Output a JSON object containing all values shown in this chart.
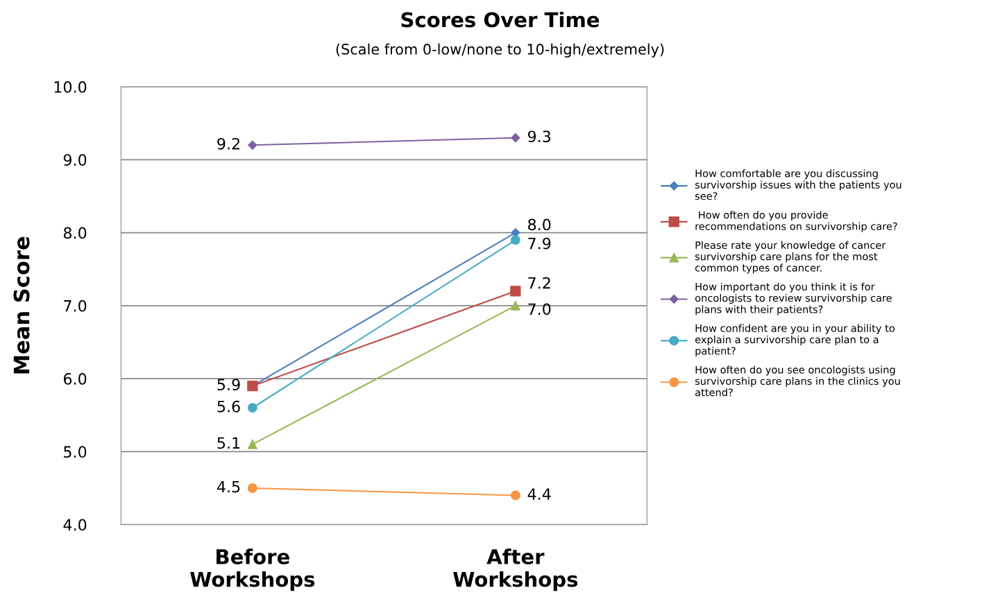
{
  "chart_data": {
    "type": "line",
    "title": "Scores Over Time",
    "subtitle": "(Scale from 0-low/none to 10-high/extremely)",
    "ylabel": "Mean Score",
    "categories": [
      "Before\nWorkshops",
      "After\nWorkshops"
    ],
    "series": [
      {
        "name": "How comfortable are you discussing\nsurvivorship issues with the patients you\nsee?",
        "color": "#4a7ebb",
        "marker": "diamond",
        "values": [
          5.9,
          8.0
        ],
        "value_labels": [
          null,
          "8.0"
        ]
      },
      {
        "name": " How often do you provide\nrecommendations on survivorship care?",
        "color": "#be4b48",
        "marker": "square",
        "values": [
          5.9,
          7.2
        ],
        "value_labels": [
          "5.9",
          "7.2"
        ]
      },
      {
        "name": "Please rate your knowledge of cancer\nsurvivorship care plans for the most\ncommon types of cancer.",
        "color": "#98b954",
        "marker": "triangle",
        "values": [
          5.1,
          7.0
        ],
        "value_labels": [
          "5.1",
          "7.0"
        ]
      },
      {
        "name": "How important do you think it is for\noncologists to review survivorship care\nplans with their patients?",
        "color": "#7d60a0",
        "marker": "diamond",
        "values": [
          9.2,
          9.3
        ],
        "value_labels": [
          "9.2",
          "9.3"
        ]
      },
      {
        "name": "How confident are you in your ability to\nexplain a survivorship care plan to a\npatient?",
        "color": "#46aac5",
        "marker": "circle",
        "values": [
          5.6,
          7.9
        ],
        "value_labels": [
          "5.6",
          "7.9"
        ]
      },
      {
        "name": "How often do you see oncologists using\nsurvivorship care plans in the clinics you\nattend?",
        "color": "#f79646",
        "marker": "circle",
        "values": [
          4.5,
          4.4
        ],
        "value_labels": [
          "4.5",
          "4.4"
        ]
      }
    ],
    "ylim": [
      4.0,
      10.0
    ],
    "yticks": [
      {
        "value": 4,
        "label": "4.0"
      },
      {
        "value": 5,
        "label": "5.0"
      },
      {
        "value": 6,
        "label": "6.0"
      },
      {
        "value": 7,
        "label": "7.0"
      },
      {
        "value": 8,
        "label": "8.0"
      },
      {
        "value": 9,
        "label": "9.0"
      },
      {
        "value": 10,
        "label": "10.0"
      }
    ],
    "grid": "y",
    "legend": "right",
    "line_style": "solid"
  }
}
